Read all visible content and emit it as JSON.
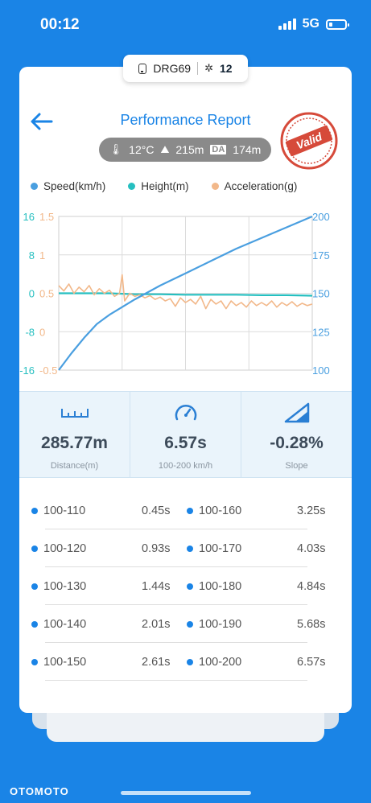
{
  "status_bar": {
    "time": "00:12",
    "network": "5G"
  },
  "device_pill": {
    "device": "DRG69",
    "satellites": "12"
  },
  "header": {
    "title": "Performance Report",
    "temperature": "12°C",
    "altitude": "215m",
    "density_badge": "DA",
    "density_altitude": "174m",
    "stamp_text": "Valid"
  },
  "legend": [
    {
      "label": "Speed(km/h)",
      "color": "#4a9fe0"
    },
    {
      "label": "Height(m)",
      "color": "#26bfc0"
    },
    {
      "label": "Acceleration(g)",
      "color": "#f2b88a"
    }
  ],
  "chart_data": {
    "type": "line",
    "left_height_ticks": [
      "16",
      "8",
      "0",
      "-8",
      "-16"
    ],
    "left_accel_ticks": [
      "1.5",
      "1",
      "0.5",
      "0",
      "-0.5"
    ],
    "right_speed_ticks": [
      "200",
      "175",
      "150",
      "125",
      "100"
    ],
    "speed_range": [
      100,
      200
    ],
    "height_range": [
      -16,
      16
    ],
    "accel_range": [
      -0.5,
      1.5
    ],
    "series": [
      {
        "name": "Speed(km/h)",
        "color": "#4a9fe0",
        "x": [
          0,
          0.05,
          0.1,
          0.15,
          0.2,
          0.3,
          0.4,
          0.5,
          0.6,
          0.7,
          0.8,
          0.9,
          1.0
        ],
        "values": [
          100,
          111,
          121,
          130,
          136,
          146,
          155,
          163,
          171,
          179,
          186,
          193,
          200
        ]
      },
      {
        "name": "Height(m)",
        "color": "#26bfc0",
        "x": [
          0,
          0.1,
          0.2,
          0.3,
          0.4,
          0.5,
          0.6,
          0.7,
          0.8,
          0.9,
          1.0
        ],
        "values": [
          0,
          0,
          0,
          -0.2,
          -0.2,
          -0.3,
          -0.3,
          -0.3,
          -0.4,
          -0.4,
          -0.5
        ]
      },
      {
        "name": "Acceleration(g)",
        "color": "#f2b88a",
        "x": [
          0,
          0.02,
          0.04,
          0.06,
          0.08,
          0.1,
          0.12,
          0.14,
          0.16,
          0.18,
          0.2,
          0.22,
          0.24,
          0.25,
          0.26,
          0.28,
          0.3,
          0.32,
          0.34,
          0.36,
          0.38,
          0.4,
          0.42,
          0.44,
          0.46,
          0.48,
          0.5,
          0.52,
          0.54,
          0.56,
          0.58,
          0.6,
          0.62,
          0.64,
          0.66,
          0.68,
          0.7,
          0.72,
          0.74,
          0.76,
          0.78,
          0.8,
          0.82,
          0.84,
          0.86,
          0.88,
          0.9,
          0.92,
          0.94,
          0.96,
          0.98,
          1.0
        ],
        "values": [
          0.6,
          0.53,
          0.62,
          0.5,
          0.58,
          0.52,
          0.6,
          0.48,
          0.56,
          0.5,
          0.54,
          0.46,
          0.5,
          0.74,
          0.4,
          0.5,
          0.46,
          0.48,
          0.44,
          0.47,
          0.42,
          0.45,
          0.4,
          0.43,
          0.33,
          0.44,
          0.38,
          0.42,
          0.36,
          0.46,
          0.3,
          0.42,
          0.36,
          0.4,
          0.3,
          0.4,
          0.34,
          0.38,
          0.32,
          0.4,
          0.34,
          0.38,
          0.34,
          0.4,
          0.32,
          0.38,
          0.34,
          0.39,
          0.33,
          0.37,
          0.34,
          0.36
        ]
      }
    ]
  },
  "stats": [
    {
      "value": "285.77m",
      "label": "Distance(m)",
      "icon": "ruler-icon"
    },
    {
      "value": "6.57s",
      "label": "100-200 km/h",
      "icon": "speedometer-icon"
    },
    {
      "value": "-0.28%",
      "label": "Slope",
      "icon": "slope-icon"
    }
  ],
  "splits": {
    "left": [
      {
        "range": "100-110",
        "time": "0.45s"
      },
      {
        "range": "100-120",
        "time": "0.93s"
      },
      {
        "range": "100-130",
        "time": "1.44s"
      },
      {
        "range": "100-140",
        "time": "2.01s"
      },
      {
        "range": "100-150",
        "time": "2.61s"
      }
    ],
    "right": [
      {
        "range": "100-160",
        "time": "3.25s"
      },
      {
        "range": "100-170",
        "time": "4.03s"
      },
      {
        "range": "100-180",
        "time": "4.84s"
      },
      {
        "range": "100-190",
        "time": "5.68s"
      },
      {
        "range": "100-200",
        "time": "6.57s"
      }
    ]
  },
  "watermark": "OTOMOTO",
  "colors": {
    "brand": "#1a84e6",
    "stamp": "#d64a3a"
  }
}
